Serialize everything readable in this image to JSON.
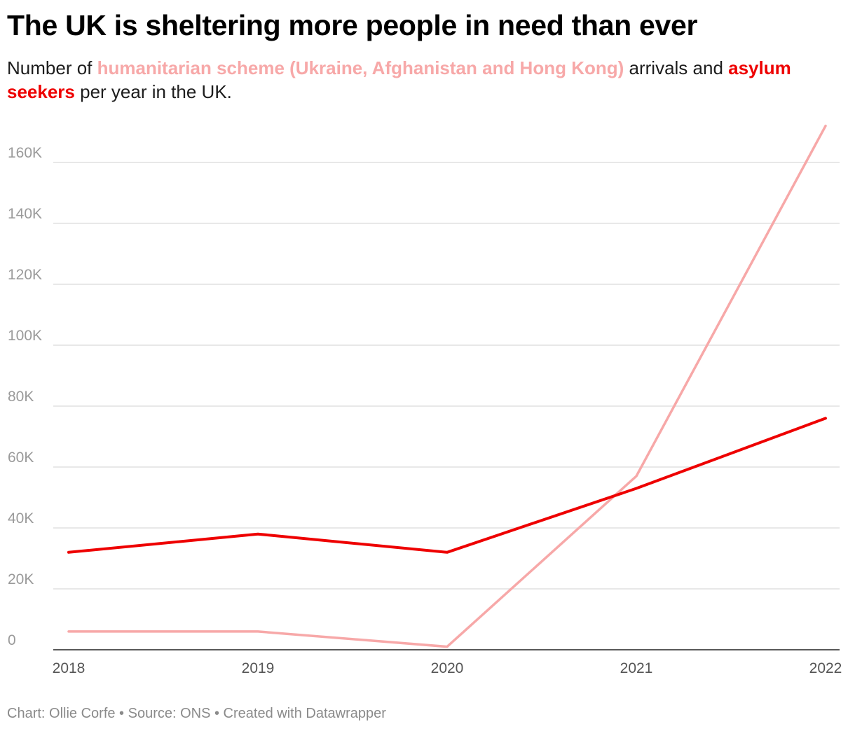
{
  "header": {
    "title": "The UK is sheltering more people in need than ever",
    "subtitle_prefix": "Number of ",
    "subtitle_series1": "humanitarian scheme (Ukraine, Afghanistan and Hong Kong)",
    "subtitle_middle": " arrivals and ",
    "subtitle_series2": "asylum seekers",
    "subtitle_suffix": " per year in the UK."
  },
  "footer": {
    "credit": "Chart: Ollie Corfe • Source: ONS • Created with Datawrapper"
  },
  "colors": {
    "humanitarian": "#f7a8a8",
    "asylum": "#ee0000",
    "grid": "#e0e0e0",
    "axis": "#222222"
  },
  "chart_data": {
    "type": "line",
    "title": "The UK is sheltering more people in need than ever",
    "xlabel": "",
    "ylabel": "",
    "x": [
      2018,
      2019,
      2020,
      2021,
      2022
    ],
    "x_labels": [
      "2018",
      "2019",
      "2020",
      "2021",
      "2022"
    ],
    "ylim": [
      0,
      172000
    ],
    "y_ticks": [
      0,
      20000,
      40000,
      60000,
      80000,
      100000,
      120000,
      140000,
      160000
    ],
    "y_tick_labels": [
      "0",
      "20K",
      "40K",
      "60K",
      "80K",
      "100K",
      "120K",
      "140K",
      "160K"
    ],
    "grid": true,
    "legend": "inline in subtitle",
    "series": [
      {
        "name": "humanitarian scheme (Ukraine, Afghanistan and Hong Kong)",
        "color": "#f7a8a8",
        "values": [
          6000,
          6000,
          1000,
          57000,
          172000
        ]
      },
      {
        "name": "asylum seekers",
        "color": "#ee0000",
        "values": [
          32000,
          38000,
          32000,
          53000,
          76000
        ]
      }
    ]
  }
}
